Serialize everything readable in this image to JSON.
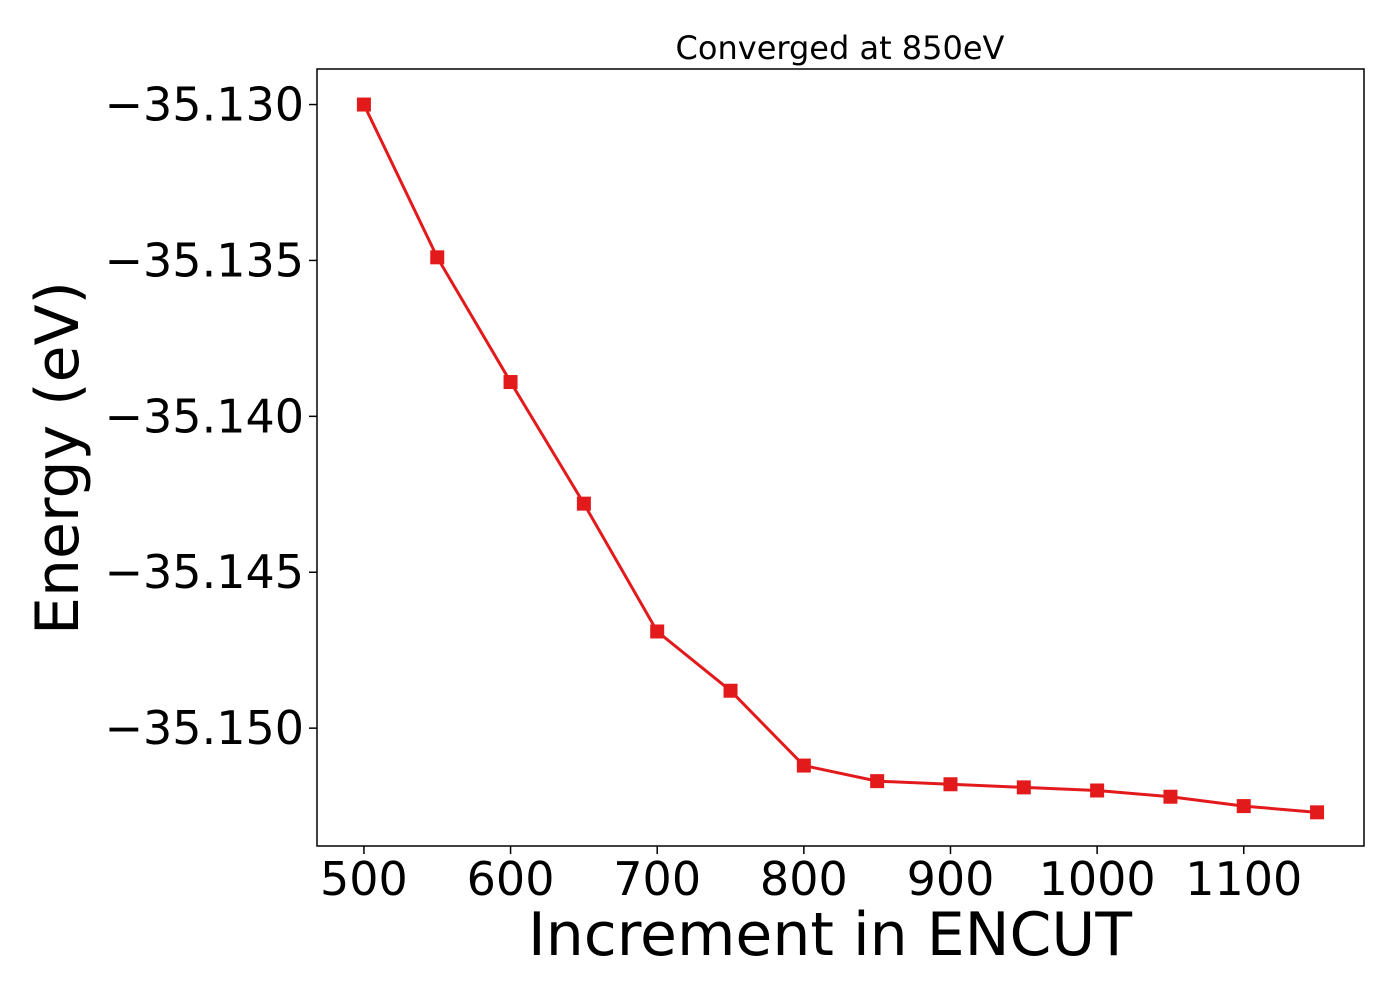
{
  "chart_data": {
    "type": "line",
    "title": "Converged at 850eV",
    "xlabel": "Increment in ENCUT",
    "ylabel": "Energy (eV)",
    "x": [
      500,
      550,
      600,
      650,
      700,
      750,
      800,
      850,
      900,
      950,
      1000,
      1050,
      1100,
      1150
    ],
    "series": [
      {
        "values": [
          -35.13,
          -35.1349,
          -35.1389,
          -35.1428,
          -35.1469,
          -35.1488,
          -35.1512,
          -35.1517,
          -35.1518,
          -35.1519,
          -35.152,
          -35.1522,
          -35.1525,
          -35.1527
        ],
        "color": "#e31a1c",
        "marker": "square"
      }
    ],
    "xlim": [
      468,
      1182
    ],
    "ylim": [
      -35.15378,
      -35.12886
    ],
    "xticks": [
      500,
      600,
      700,
      800,
      900,
      1000,
      1100
    ],
    "xtick_labels": [
      "500",
      "600",
      "700",
      "800",
      "900",
      "1000",
      "1100"
    ],
    "yticks": [
      -35.13,
      -35.135,
      -35.14,
      -35.145,
      -35.15
    ],
    "ytick_labels": [
      "−35.130",
      "−35.135",
      "−35.140",
      "−35.145",
      "−35.150"
    ],
    "grid": false,
    "legend": "none"
  }
}
